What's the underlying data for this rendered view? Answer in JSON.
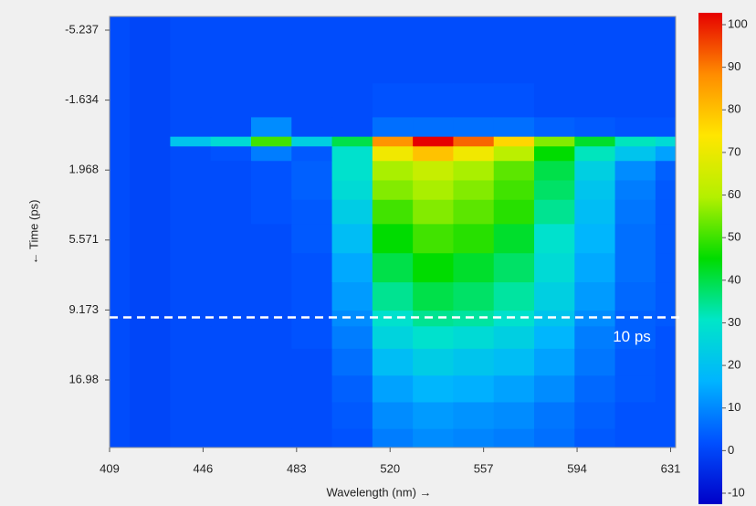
{
  "chart_data": {
    "type": "heatmap",
    "x_label": "Wavelength (nm) →",
    "y_label": "← Time (ps)",
    "x": [
      409,
      425,
      441,
      457,
      473,
      489,
      505,
      521,
      537,
      553,
      569,
      585,
      601,
      617,
      633
    ],
    "y": [
      -5.5,
      -3.5,
      -1.5,
      0,
      0.5,
      1,
      2,
      3,
      4,
      5.5,
      7,
      8.5,
      10,
      12,
      15,
      18,
      21,
      24
    ],
    "z": [
      [
        3,
        2,
        3,
        3,
        3,
        3,
        3,
        3,
        3,
        3,
        3,
        3,
        3,
        3,
        3
      ],
      [
        3,
        2,
        3,
        3,
        3,
        3,
        3,
        3,
        3,
        3,
        3,
        3,
        3,
        3,
        3
      ],
      [
        3,
        2,
        3,
        3,
        3,
        3,
        3,
        4,
        4,
        4,
        4,
        3,
        3,
        3,
        3
      ],
      [
        3,
        2,
        3,
        3,
        12,
        3,
        3,
        8,
        8,
        8,
        8,
        6,
        5,
        4,
        4
      ],
      [
        3,
        2,
        22,
        28,
        50,
        25,
        40,
        85,
        100,
        90,
        75,
        55,
        42,
        32,
        28
      ],
      [
        3,
        2,
        3,
        4,
        10,
        5,
        30,
        70,
        78,
        70,
        60,
        45,
        32,
        22,
        15
      ],
      [
        3,
        2,
        3,
        3,
        4,
        6,
        30,
        58,
        62,
        58,
        52,
        40,
        25,
        12,
        6
      ],
      [
        3,
        2,
        3,
        3,
        4,
        6,
        28,
        55,
        58,
        55,
        50,
        38,
        22,
        10,
        5
      ],
      [
        3,
        2,
        3,
        3,
        4,
        5,
        24,
        50,
        55,
        52,
        48,
        35,
        20,
        9,
        5
      ],
      [
        3,
        2,
        3,
        3,
        3,
        5,
        20,
        45,
        50,
        48,
        42,
        30,
        18,
        8,
        5
      ],
      [
        3,
        2,
        3,
        3,
        3,
        4,
        16,
        40,
        45,
        42,
        38,
        28,
        16,
        8,
        5
      ],
      [
        3,
        2,
        3,
        3,
        3,
        4,
        14,
        35,
        40,
        38,
        34,
        25,
        14,
        7,
        5
      ],
      [
        3,
        2,
        3,
        3,
        3,
        4,
        12,
        30,
        35,
        34,
        30,
        22,
        12,
        6,
        5
      ],
      [
        3,
        2,
        3,
        3,
        3,
        4,
        10,
        26,
        30,
        28,
        25,
        18,
        10,
        6,
        4
      ],
      [
        3,
        2,
        3,
        3,
        3,
        3,
        8,
        20,
        24,
        22,
        20,
        15,
        9,
        5,
        4
      ],
      [
        3,
        2,
        3,
        3,
        3,
        3,
        6,
        15,
        18,
        17,
        15,
        12,
        7,
        5,
        4
      ],
      [
        3,
        2,
        3,
        3,
        3,
        3,
        5,
        12,
        14,
        13,
        12,
        9,
        6,
        4,
        4
      ],
      [
        3,
        2,
        3,
        3,
        3,
        3,
        4,
        10,
        12,
        11,
        10,
        8,
        5,
        4,
        4
      ]
    ],
    "xlim": [
      409,
      633
    ],
    "xticks": [
      409,
      446,
      483,
      520,
      557,
      594,
      631
    ],
    "ylim": [
      -5.9,
      24.6
    ],
    "yticks": [
      -5.237,
      -1.634,
      1.968,
      5.571,
      9.173,
      16.98
    ],
    "zlim": [
      -10,
      100
    ],
    "zticks": [
      100,
      90,
      80,
      70,
      60,
      50,
      40,
      30,
      20,
      10,
      0,
      -10
    ],
    "colorscale": [
      "#0000c8",
      "#0050ff",
      "#00b4ff",
      "#00e6c8",
      "#00dc00",
      "#b4f000",
      "#ffe600",
      "#ff8c00",
      "#e60000"
    ],
    "annotation": {
      "text": "10 ps",
      "value": 10
    }
  }
}
